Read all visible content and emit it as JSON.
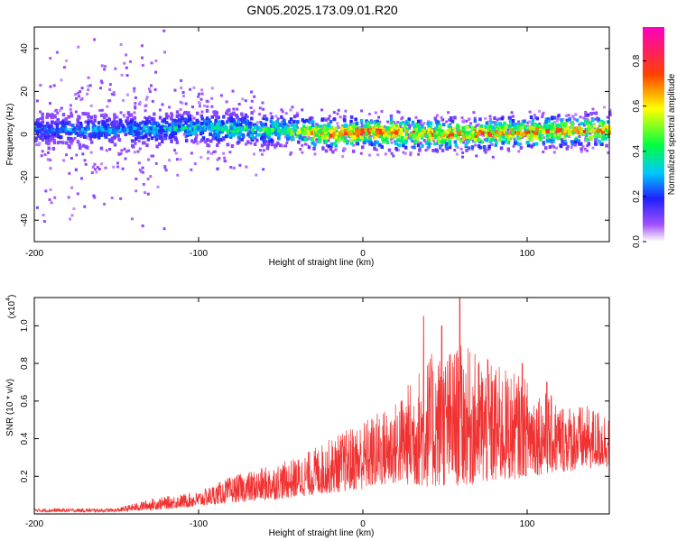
{
  "title": "GN05.2025.173.09.01.R20",
  "colors": {
    "snr_line": "#f03232",
    "axis": "#000000",
    "background": "#ffffff",
    "colormap": [
      "#ffffff",
      "#7a00ff",
      "#2040ff",
      "#00e0ff",
      "#00ff80",
      "#ffff00",
      "#ff4000",
      "#ff00c0"
    ]
  },
  "chart_data": [
    {
      "type": "heatmap",
      "title": "GN05.2025.173.09.01.R20",
      "xlabel": "Height of straight line (km)",
      "ylabel": "Frequency (Hz)",
      "xlim": [
        -200,
        150
      ],
      "ylim": [
        -50,
        50
      ],
      "x_ticks": [
        "-200",
        "-100",
        "0",
        "100"
      ],
      "y_ticks": [
        "-40",
        "-20",
        "0",
        "20",
        "40"
      ],
      "ridge": {
        "description_values": "approximate centre frequency (Hz) of the dominant band vs height (km)",
        "x": [
          -200,
          -150,
          -100,
          -50,
          -20,
          0,
          50,
          100,
          150
        ],
        "center_hz": [
          2,
          2,
          3,
          2,
          0,
          1,
          0,
          1,
          2
        ],
        "peak_amplitude": [
          0.3,
          0.35,
          0.45,
          0.55,
          0.85,
          0.9,
          0.85,
          0.85,
          0.85
        ]
      },
      "colorbar": {
        "label": "Normalized spectral amplitude",
        "range": [
          0,
          0.95
        ],
        "ticks": [
          "0.0",
          "0.2",
          "0.4",
          "0.6",
          "0.8"
        ]
      }
    },
    {
      "type": "line",
      "xlabel": "Height of straight line (km)",
      "ylabel": "SNR (10 * v/v)",
      "y_multiplier": "(x10",
      "y_multiplier_exp": "4",
      "y_multiplier_close": ")",
      "xlim": [
        -200,
        150
      ],
      "ylim": [
        0,
        1.15
      ],
      "x_ticks": [
        "-200",
        "-100",
        "0",
        "100"
      ],
      "y_ticks": [
        "0.2",
        "0.4",
        "0.6",
        "0.8",
        "1.0"
      ],
      "envelope": {
        "x": [
          -200,
          -150,
          -130,
          -100,
          -80,
          -60,
          -40,
          -20,
          0,
          20,
          40,
          60,
          80,
          100,
          120,
          150
        ],
        "low": [
          0.01,
          0.01,
          0.02,
          0.04,
          0.06,
          0.07,
          0.09,
          0.11,
          0.13,
          0.16,
          0.14,
          0.15,
          0.16,
          0.2,
          0.22,
          0.25
        ],
        "high": [
          0.03,
          0.03,
          0.08,
          0.12,
          0.2,
          0.25,
          0.3,
          0.4,
          0.5,
          0.6,
          0.85,
          0.9,
          0.8,
          0.72,
          0.6,
          0.55
        ]
      },
      "spikes": [
        {
          "x": 37,
          "y": 1.05
        },
        {
          "x": 48,
          "y": 1.0
        },
        {
          "x": 59,
          "y": 1.15
        },
        {
          "x": 76,
          "y": 0.82
        },
        {
          "x": 97,
          "y": 0.8
        },
        {
          "x": 112,
          "y": 0.7
        }
      ]
    }
  ]
}
